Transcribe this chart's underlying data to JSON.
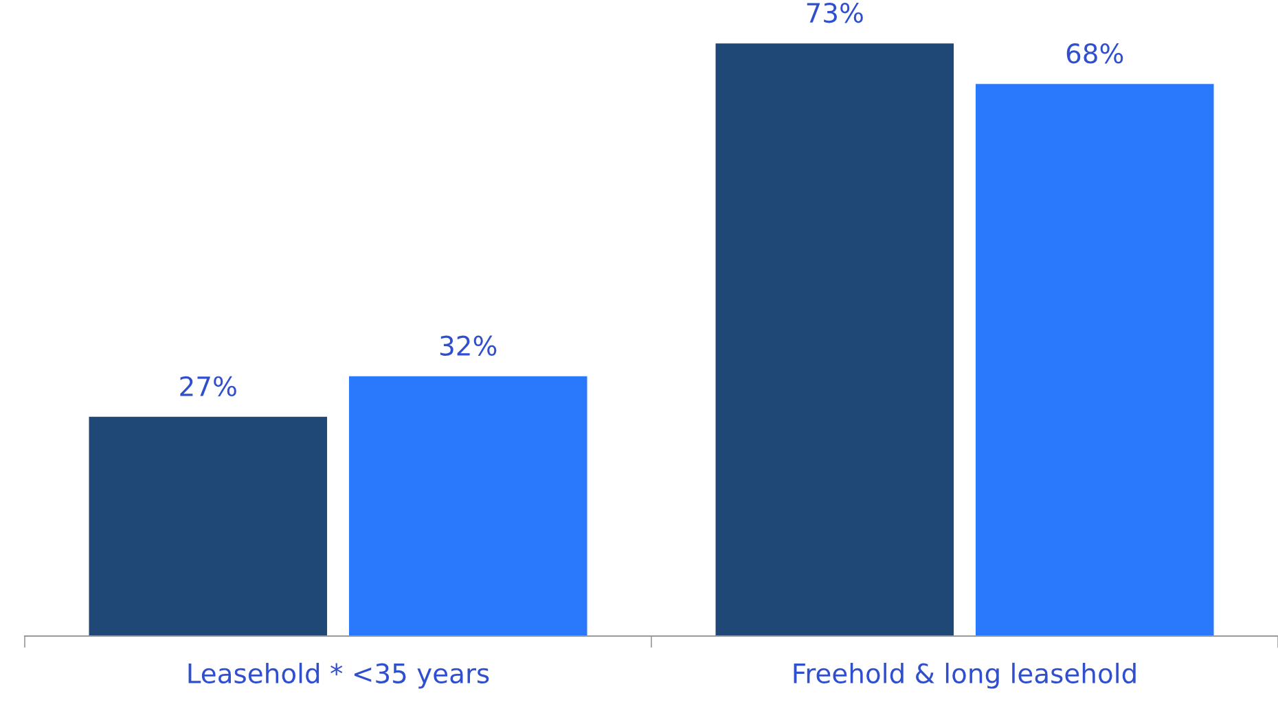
{
  "chart_data": {
    "type": "bar",
    "categories": [
      "Leasehold * <35 years",
      "Freehold & long leasehold"
    ],
    "series": [
      {
        "color": "#1f4877",
        "values": [
          27,
          73
        ],
        "value_labels": [
          "27%",
          "73%"
        ]
      },
      {
        "color": "#2a78fb",
        "values": [
          32,
          68
        ],
        "value_labels": [
          "32%",
          "68%"
        ]
      }
    ],
    "grid": false,
    "legend": false
  }
}
